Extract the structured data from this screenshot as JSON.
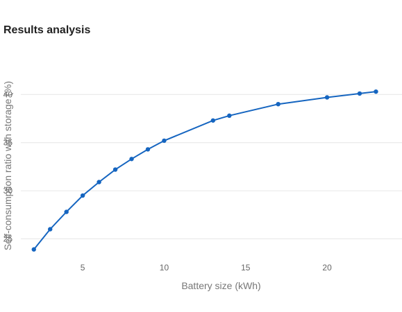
{
  "page": {
    "title": "Results analysis"
  },
  "chart_data": {
    "type": "line",
    "title": "",
    "xlabel": "Battery size (kWh)",
    "ylabel": "Self-consumption ratio with storage (%)",
    "xlim": [
      1.2,
      24.6
    ],
    "ylim": [
      22.8,
      42.4
    ],
    "xticks": [
      5,
      10,
      15,
      20
    ],
    "yticks": [
      25,
      30,
      35,
      40
    ],
    "grid": "horizontal",
    "legend": "none",
    "line_color": "#1565c0",
    "grid_color": "#e6e6e6",
    "series": [
      {
        "x": [
          2,
          3,
          4,
          5,
          6,
          7,
          8,
          9,
          10,
          13,
          14,
          17,
          20,
          22,
          23
        ],
        "values": [
          23.9,
          26.0,
          27.8,
          29.5,
          30.9,
          32.2,
          33.3,
          34.3,
          35.2,
          37.3,
          37.8,
          39.0,
          39.7,
          40.1,
          40.3
        ]
      }
    ]
  }
}
